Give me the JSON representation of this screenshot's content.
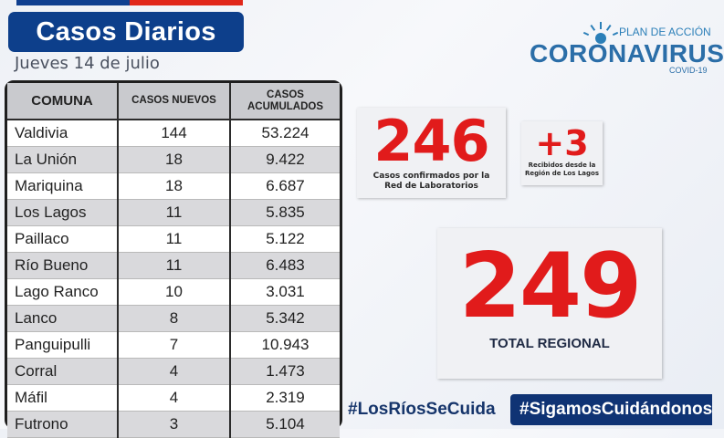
{
  "header": {
    "title": "Casos Diarios",
    "date": "Jueves 14 de julio"
  },
  "colors": {
    "title_bg": "#0d3f8b",
    "accent_red": "#e11b1b",
    "brand_blue": "#2b6ea8",
    "hashtag_bg": "#0f3374"
  },
  "table": {
    "headers": {
      "comuna": "COMUNA",
      "nuevos": "CASOS NUEVOS",
      "acum_line1": "CASOS",
      "acum_line2": "ACUMULADOS"
    },
    "rows": [
      {
        "comuna": "Valdivia",
        "nuevos": "144",
        "acumulados": "53.224"
      },
      {
        "comuna": "La Unión",
        "nuevos": "18",
        "acumulados": "9.422"
      },
      {
        "comuna": "Mariquina",
        "nuevos": "18",
        "acumulados": "6.687"
      },
      {
        "comuna": "Los Lagos",
        "nuevos": "11",
        "acumulados": "5.835"
      },
      {
        "comuna": "Paillaco",
        "nuevos": "11",
        "acumulados": "5.122"
      },
      {
        "comuna": "Río Bueno",
        "nuevos": "11",
        "acumulados": "6.483"
      },
      {
        "comuna": "Lago Ranco",
        "nuevos": "10",
        "acumulados": "3.031"
      },
      {
        "comuna": "Lanco",
        "nuevos": "8",
        "acumulados": "5.342"
      },
      {
        "comuna": "Panguipulli",
        "nuevos": "7",
        "acumulados": "10.943"
      },
      {
        "comuna": "Corral",
        "nuevos": "4",
        "acumulados": "1.473"
      },
      {
        "comuna": "Máfil",
        "nuevos": "4",
        "acumulados": "2.319"
      },
      {
        "comuna": "Futrono",
        "nuevos": "3",
        "acumulados": "5.104"
      }
    ]
  },
  "cards": {
    "confirmed": {
      "value": "246",
      "caption_line1": "Casos confirmados por la",
      "caption_line2": "Red de Laboratorios"
    },
    "received": {
      "value": "+3",
      "caption_line1": "Recibidos desde la",
      "caption_line2": "Región de Los Lagos"
    },
    "total": {
      "value": "249",
      "caption": "TOTAL REGIONAL"
    }
  },
  "logo": {
    "plan": "PLAN DE ACCIÓN",
    "name": "CORONAVIRUS",
    "covid": "COVID-19",
    "icon": "sun-rays-icon"
  },
  "hashtags": {
    "left": "#LosRíosSeCuida",
    "right": "#SigamosCuidándonos"
  }
}
